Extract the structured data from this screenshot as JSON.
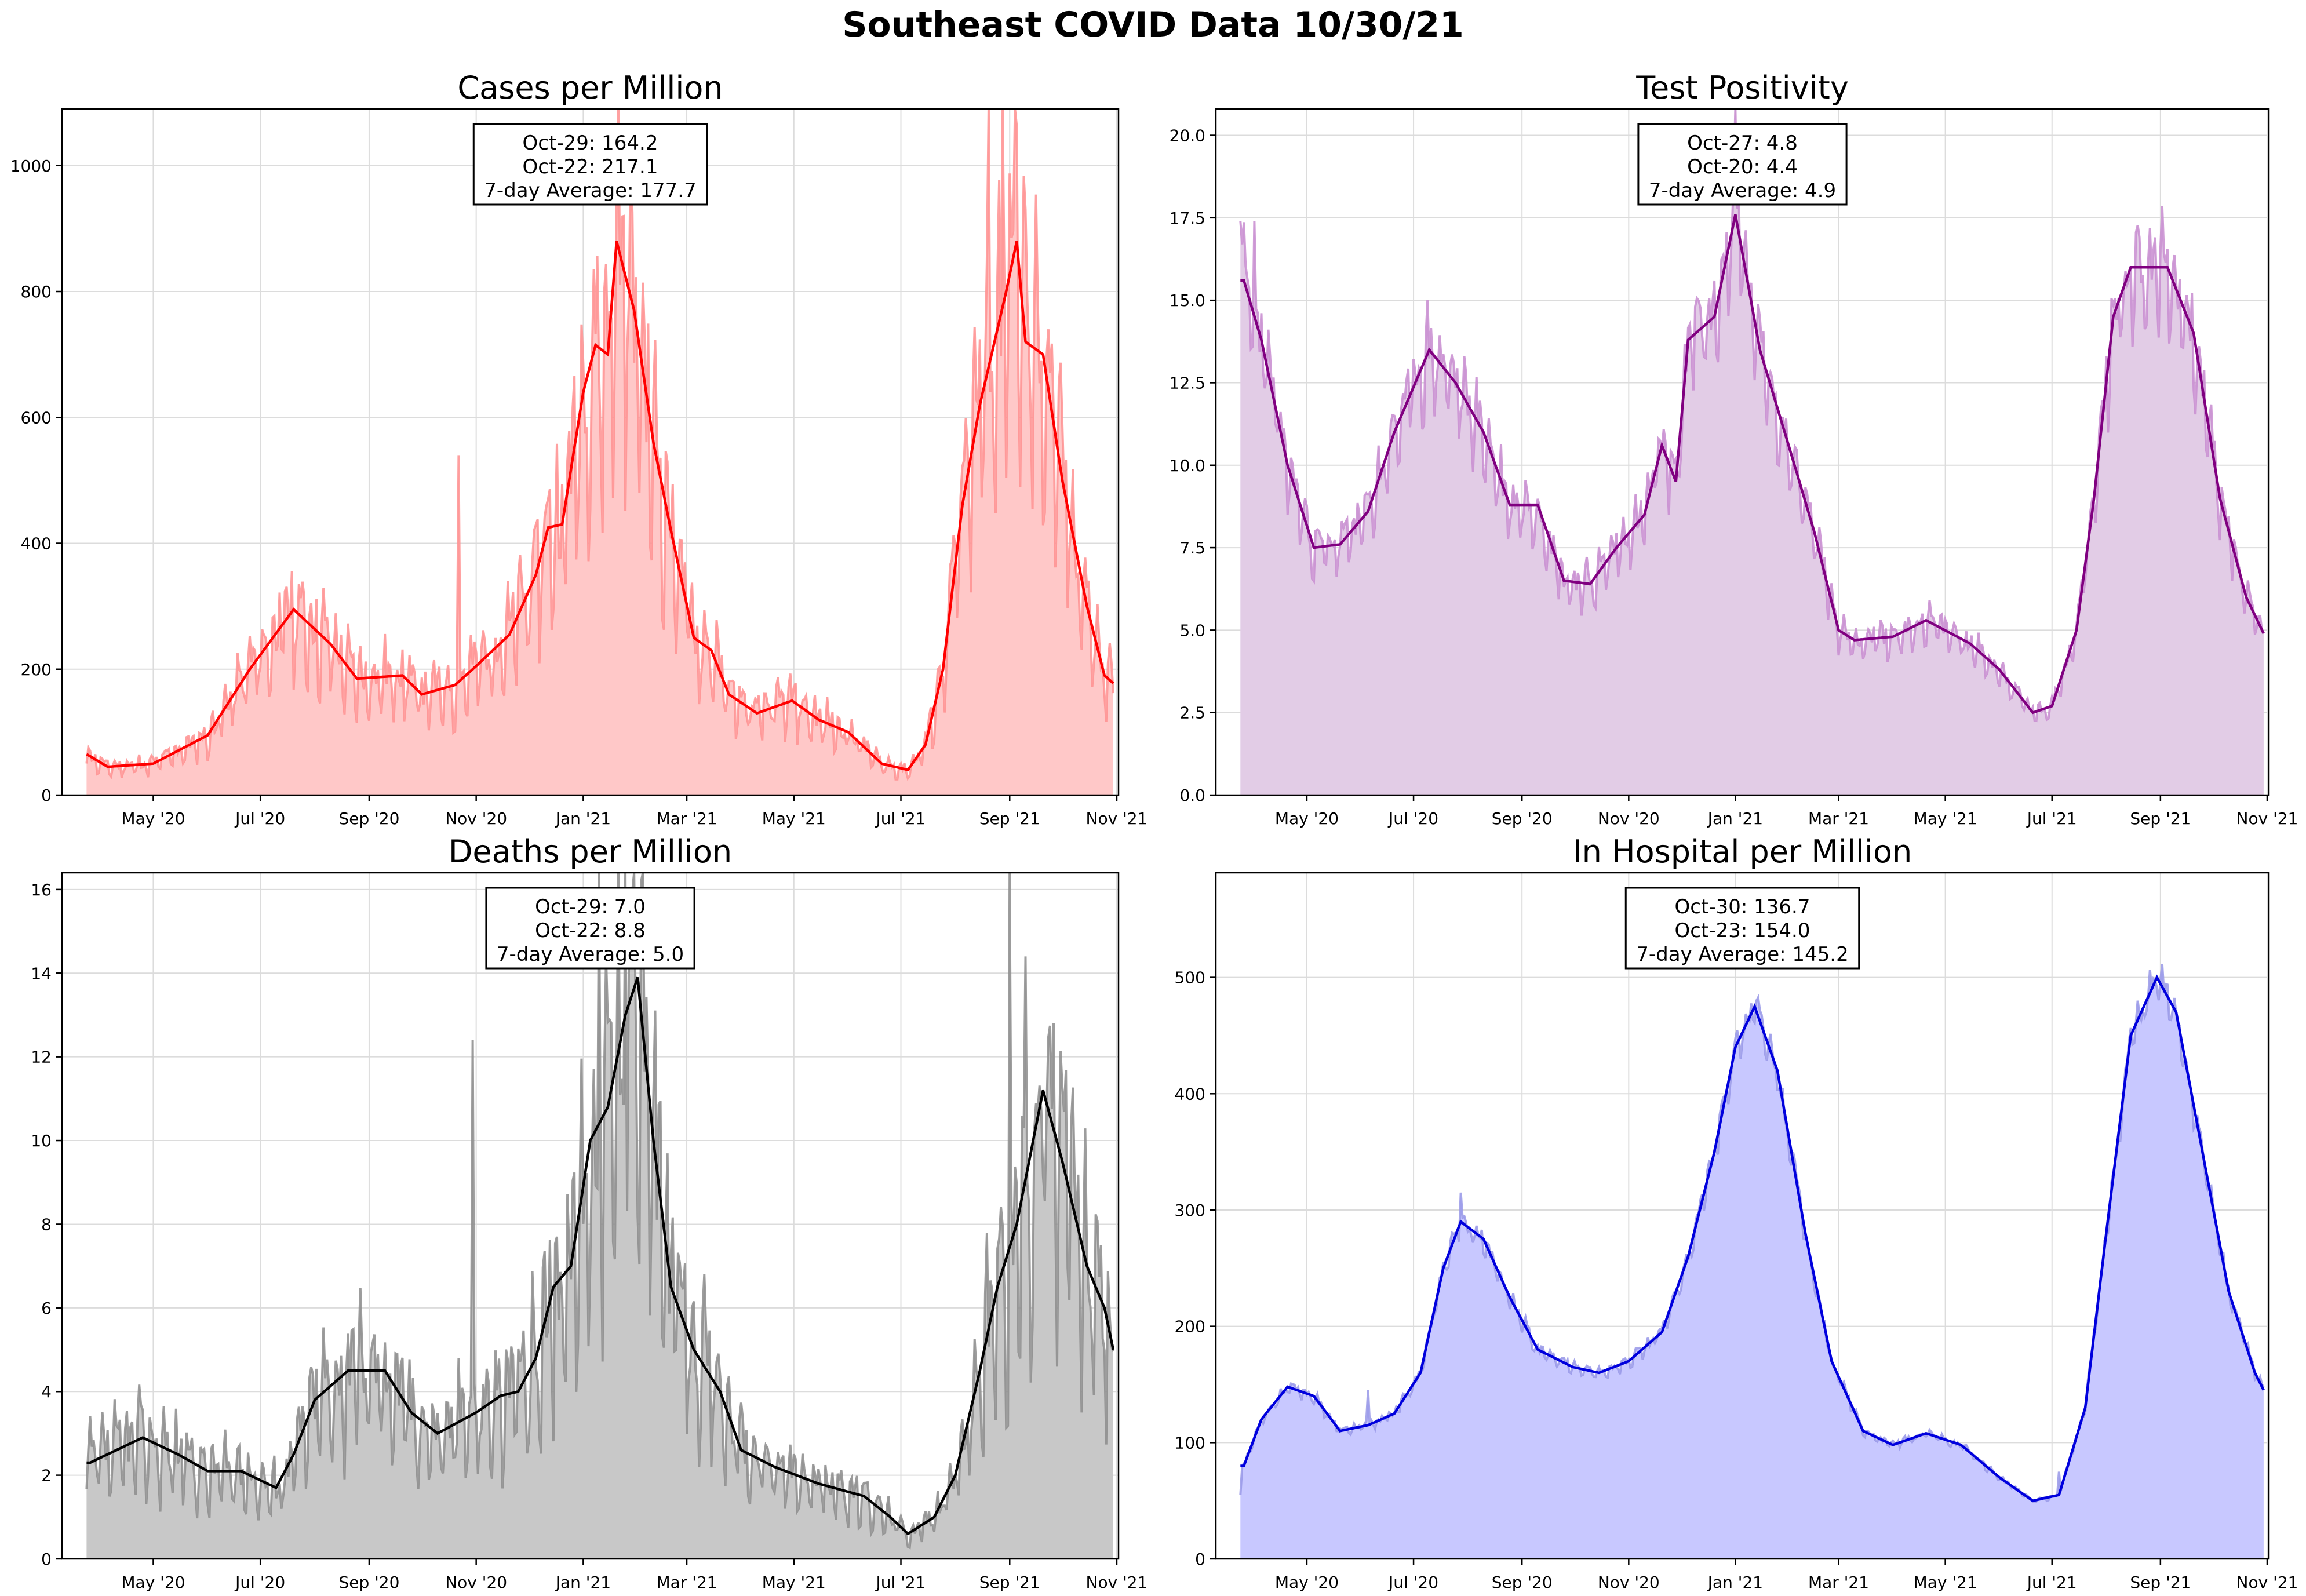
{
  "suptitle": "Southeast COVID Data 10/30/21",
  "month_labels": [
    "May '20",
    "Jul '20",
    "Sep '20",
    "Nov '20",
    "Jan '21",
    "Mar '21",
    "May '21",
    "Jul '21",
    "Sep '21",
    "Nov '21"
  ],
  "chart_data": [
    {
      "id": "cases",
      "type": "area",
      "title": "Cases per Million",
      "color": "#ff0000",
      "fill_color": "#ffc8c8",
      "raw_color": "#ff9090",
      "ylim": [
        0,
        1090
      ],
      "yticks": [
        0,
        200,
        400,
        600,
        800,
        1000
      ],
      "ytick_labels": [
        "0",
        "200",
        "400",
        "600",
        "800",
        "1000"
      ],
      "annotation": [
        "Oct-29: 164.2",
        "Oct-22: 217.1",
        "7-day Average: 177.7"
      ],
      "avg_keypoints": [
        [
          "2020-03-24",
          65
        ],
        [
          "2020-04-05",
          45
        ],
        [
          "2020-05-01",
          50
        ],
        [
          "2020-06-01",
          95
        ],
        [
          "2020-06-25",
          200
        ],
        [
          "2020-07-20",
          295
        ],
        [
          "2020-08-10",
          240
        ],
        [
          "2020-08-25",
          185
        ],
        [
          "2020-09-20",
          190
        ],
        [
          "2020-10-01",
          160
        ],
        [
          "2020-10-20",
          175
        ],
        [
          "2020-11-01",
          205
        ],
        [
          "2020-11-20",
          255
        ],
        [
          "2020-12-05",
          350
        ],
        [
          "2020-12-12",
          425
        ],
        [
          "2020-12-20",
          430
        ],
        [
          "2021-01-01",
          640
        ],
        [
          "2021-01-08",
          715
        ],
        [
          "2021-01-15",
          700
        ],
        [
          "2021-01-20",
          880
        ],
        [
          "2021-01-30",
          770
        ],
        [
          "2021-02-10",
          560
        ],
        [
          "2021-02-20",
          420
        ],
        [
          "2021-03-05",
          250
        ],
        [
          "2021-03-15",
          230
        ],
        [
          "2021-03-25",
          160
        ],
        [
          "2021-04-10",
          130
        ],
        [
          "2021-04-30",
          150
        ],
        [
          "2021-05-15",
          120
        ],
        [
          "2021-06-01",
          100
        ],
        [
          "2021-06-20",
          50
        ],
        [
          "2021-07-05",
          40
        ],
        [
          "2021-07-15",
          80
        ],
        [
          "2021-07-25",
          200
        ],
        [
          "2021-08-05",
          460
        ],
        [
          "2021-08-15",
          620
        ],
        [
          "2021-08-30",
          800
        ],
        [
          "2021-09-05",
          880
        ],
        [
          "2021-09-10",
          720
        ],
        [
          "2021-09-20",
          700
        ],
        [
          "2021-10-01",
          500
        ],
        [
          "2021-10-15",
          300
        ],
        [
          "2021-10-25",
          190
        ],
        [
          "2021-10-30",
          177.7
        ]
      ],
      "raw_noise": 0.35,
      "raw_seed": 11,
      "raw_spikes": [
        [
          "2020-10-22",
          540
        ],
        [
          "2021-08-20",
          1090
        ],
        [
          "2021-08-28",
          1090
        ],
        [
          "2021-09-04",
          1090
        ],
        [
          "2021-09-10",
          930
        ]
      ]
    },
    {
      "id": "positivity",
      "type": "area",
      "title": "Test Positivity",
      "color": "#800080",
      "fill_color": "#e2cce6",
      "raw_color": "#c88cd0",
      "ylim": [
        0,
        20.8
      ],
      "yticks": [
        0,
        2.5,
        5,
        7.5,
        10,
        12.5,
        15,
        17.5,
        20
      ],
      "ytick_labels": [
        "0.0",
        "2.5",
        "5.0",
        "7.5",
        "10.0",
        "12.5",
        "15.0",
        "17.5",
        "20.0"
      ],
      "annotation": [
        "Oct-27: 4.8",
        "Oct-20: 4.4",
        "7-day Average: 4.9"
      ],
      "avg_keypoints": [
        [
          "2020-03-26",
          15.6
        ],
        [
          "2020-04-05",
          13.8
        ],
        [
          "2020-04-20",
          10
        ],
        [
          "2020-05-05",
          7.5
        ],
        [
          "2020-05-20",
          7.6
        ],
        [
          "2020-06-05",
          8.6
        ],
        [
          "2020-06-20",
          11
        ],
        [
          "2020-07-10",
          13.5
        ],
        [
          "2020-07-25",
          12.5
        ],
        [
          "2020-08-10",
          11
        ],
        [
          "2020-08-25",
          8.8
        ],
        [
          "2020-09-10",
          8.8
        ],
        [
          "2020-09-25",
          6.5
        ],
        [
          "2020-10-10",
          6.4
        ],
        [
          "2020-10-25",
          7.5
        ],
        [
          "2020-11-10",
          8.5
        ],
        [
          "2020-11-20",
          10.6
        ],
        [
          "2020-11-28",
          9.5
        ],
        [
          "2020-12-05",
          13.8
        ],
        [
          "2020-12-20",
          14.5
        ],
        [
          "2021-01-01",
          17.6
        ],
        [
          "2021-01-15",
          13.5
        ],
        [
          "2021-02-01",
          10.5
        ],
        [
          "2021-02-15",
          8
        ],
        [
          "2021-03-01",
          5
        ],
        [
          "2021-03-10",
          4.7
        ],
        [
          "2021-04-01",
          4.8
        ],
        [
          "2021-04-20",
          5.3
        ],
        [
          "2021-05-15",
          4.6
        ],
        [
          "2021-06-01",
          3.8
        ],
        [
          "2021-06-20",
          2.5
        ],
        [
          "2021-07-01",
          2.7
        ],
        [
          "2021-07-15",
          5
        ],
        [
          "2021-07-25",
          9
        ],
        [
          "2021-08-05",
          14.5
        ],
        [
          "2021-08-15",
          16
        ],
        [
          "2021-09-05",
          16
        ],
        [
          "2021-09-20",
          14
        ],
        [
          "2021-10-05",
          9
        ],
        [
          "2021-10-20",
          6
        ],
        [
          "2021-10-30",
          4.9
        ]
      ],
      "raw_noise": 0.12,
      "raw_seed": 23,
      "raw_spikes": [
        [
          "2020-03-24",
          17.4
        ],
        [
          "2020-04-01",
          17.4
        ],
        [
          "2021-01-01",
          20.8
        ]
      ]
    },
    {
      "id": "deaths",
      "type": "area",
      "title": "Deaths per Million",
      "color": "#000000",
      "fill_color": "#c8c8c8",
      "raw_color": "#8c8c8c",
      "ylim": [
        0,
        16.4
      ],
      "yticks": [
        0,
        2,
        4,
        6,
        8,
        10,
        12,
        14,
        16
      ],
      "ytick_labels": [
        "0",
        "2",
        "4",
        "6",
        "8",
        "10",
        "12",
        "14",
        "16"
      ],
      "annotation": [
        "Oct-29: 7.0",
        "Oct-22: 8.8",
        "7-day Average: 5.0"
      ],
      "avg_keypoints": [
        [
          "2020-03-26",
          2.3
        ],
        [
          "2020-04-10",
          2.6
        ],
        [
          "2020-04-25",
          2.9
        ],
        [
          "2020-05-15",
          2.5
        ],
        [
          "2020-06-01",
          2.1
        ],
        [
          "2020-06-20",
          2.1
        ],
        [
          "2020-07-10",
          1.7
        ],
        [
          "2020-07-20",
          2.5
        ],
        [
          "2020-08-01",
          3.8
        ],
        [
          "2020-08-20",
          4.5
        ],
        [
          "2020-09-10",
          4.5
        ],
        [
          "2020-09-25",
          3.5
        ],
        [
          "2020-10-10",
          3.0
        ],
        [
          "2020-11-01",
          3.5
        ],
        [
          "2020-11-15",
          3.9
        ],
        [
          "2020-11-25",
          4.0
        ],
        [
          "2020-12-05",
          4.8
        ],
        [
          "2020-12-15",
          6.5
        ],
        [
          "2020-12-25",
          7.0
        ],
        [
          "2021-01-05",
          10.0
        ],
        [
          "2021-01-15",
          10.8
        ],
        [
          "2021-01-25",
          13.0
        ],
        [
          "2021-02-01",
          13.9
        ],
        [
          "2021-02-10",
          10.0
        ],
        [
          "2021-02-20",
          6.5
        ],
        [
          "2021-03-05",
          5.0
        ],
        [
          "2021-03-20",
          4.0
        ],
        [
          "2021-04-01",
          2.6
        ],
        [
          "2021-04-20",
          2.2
        ],
        [
          "2021-05-15",
          1.8
        ],
        [
          "2021-06-10",
          1.5
        ],
        [
          "2021-06-25",
          1.0
        ],
        [
          "2021-07-05",
          0.6
        ],
        [
          "2021-07-20",
          1.0
        ],
        [
          "2021-08-01",
          2.0
        ],
        [
          "2021-08-15",
          4.5
        ],
        [
          "2021-08-25",
          6.5
        ],
        [
          "2021-09-05",
          8.0
        ],
        [
          "2021-09-20",
          11.2
        ],
        [
          "2021-10-01",
          9.5
        ],
        [
          "2021-10-15",
          7.0
        ],
        [
          "2021-10-25",
          6.0
        ],
        [
          "2021-10-30",
          5.0
        ]
      ],
      "raw_noise": 0.45,
      "raw_seed": 37,
      "raw_spikes": [
        [
          "2020-10-30",
          12.4
        ],
        [
          "2021-01-10",
          16.4
        ],
        [
          "2021-01-25",
          16.4
        ],
        [
          "2021-09-01",
          16.4
        ],
        [
          "2021-09-10",
          14.4
        ]
      ]
    },
    {
      "id": "hospital",
      "type": "area",
      "title": "In Hospital per Million",
      "color": "#0000dd",
      "fill_color": "#c8c8ff",
      "raw_color": "#9898e8",
      "ylim": [
        0,
        590
      ],
      "yticks": [
        0,
        100,
        200,
        300,
        400,
        500
      ],
      "ytick_labels": [
        "0",
        "100",
        "200",
        "300",
        "400",
        "500"
      ],
      "annotation": [
        "Oct-30: 136.7",
        "Oct-23: 154.0",
        "7-day Average: 145.2"
      ],
      "avg_keypoints": [
        [
          "2020-03-26",
          80
        ],
        [
          "2020-04-05",
          120
        ],
        [
          "2020-04-20",
          148
        ],
        [
          "2020-05-05",
          140
        ],
        [
          "2020-05-20",
          110
        ],
        [
          "2020-06-05",
          115
        ],
        [
          "2020-06-20",
          125
        ],
        [
          "2020-07-05",
          160
        ],
        [
          "2020-07-18",
          250
        ],
        [
          "2020-07-28",
          290
        ],
        [
          "2020-08-10",
          275
        ],
        [
          "2020-08-25",
          225
        ],
        [
          "2020-09-10",
          180
        ],
        [
          "2020-09-30",
          165
        ],
        [
          "2020-10-15",
          160
        ],
        [
          "2020-11-01",
          170
        ],
        [
          "2020-11-20",
          195
        ],
        [
          "2020-12-05",
          260
        ],
        [
          "2020-12-20",
          350
        ],
        [
          "2021-01-01",
          440
        ],
        [
          "2021-01-12",
          475
        ],
        [
          "2021-01-25",
          420
        ],
        [
          "2021-02-10",
          280
        ],
        [
          "2021-02-25",
          170
        ],
        [
          "2021-03-15",
          110
        ],
        [
          "2021-04-01",
          98
        ],
        [
          "2021-04-20",
          108
        ],
        [
          "2021-05-10",
          98
        ],
        [
          "2021-06-01",
          70
        ],
        [
          "2021-06-20",
          50
        ],
        [
          "2021-07-05",
          55
        ],
        [
          "2021-07-20",
          130
        ],
        [
          "2021-08-01",
          280
        ],
        [
          "2021-08-15",
          450
        ],
        [
          "2021-08-30",
          500
        ],
        [
          "2021-09-10",
          470
        ],
        [
          "2021-09-25",
          350
        ],
        [
          "2021-10-10",
          230
        ],
        [
          "2021-10-25",
          160
        ],
        [
          "2021-10-30",
          145.2
        ]
      ],
      "raw_noise": 0.04,
      "raw_seed": 53,
      "raw_spikes": [
        [
          "2020-03-24",
          55
        ],
        [
          "2020-07-28",
          315
        ],
        [
          "2020-06-05",
          145
        ],
        [
          "2021-07-05",
          75
        ]
      ]
    }
  ]
}
